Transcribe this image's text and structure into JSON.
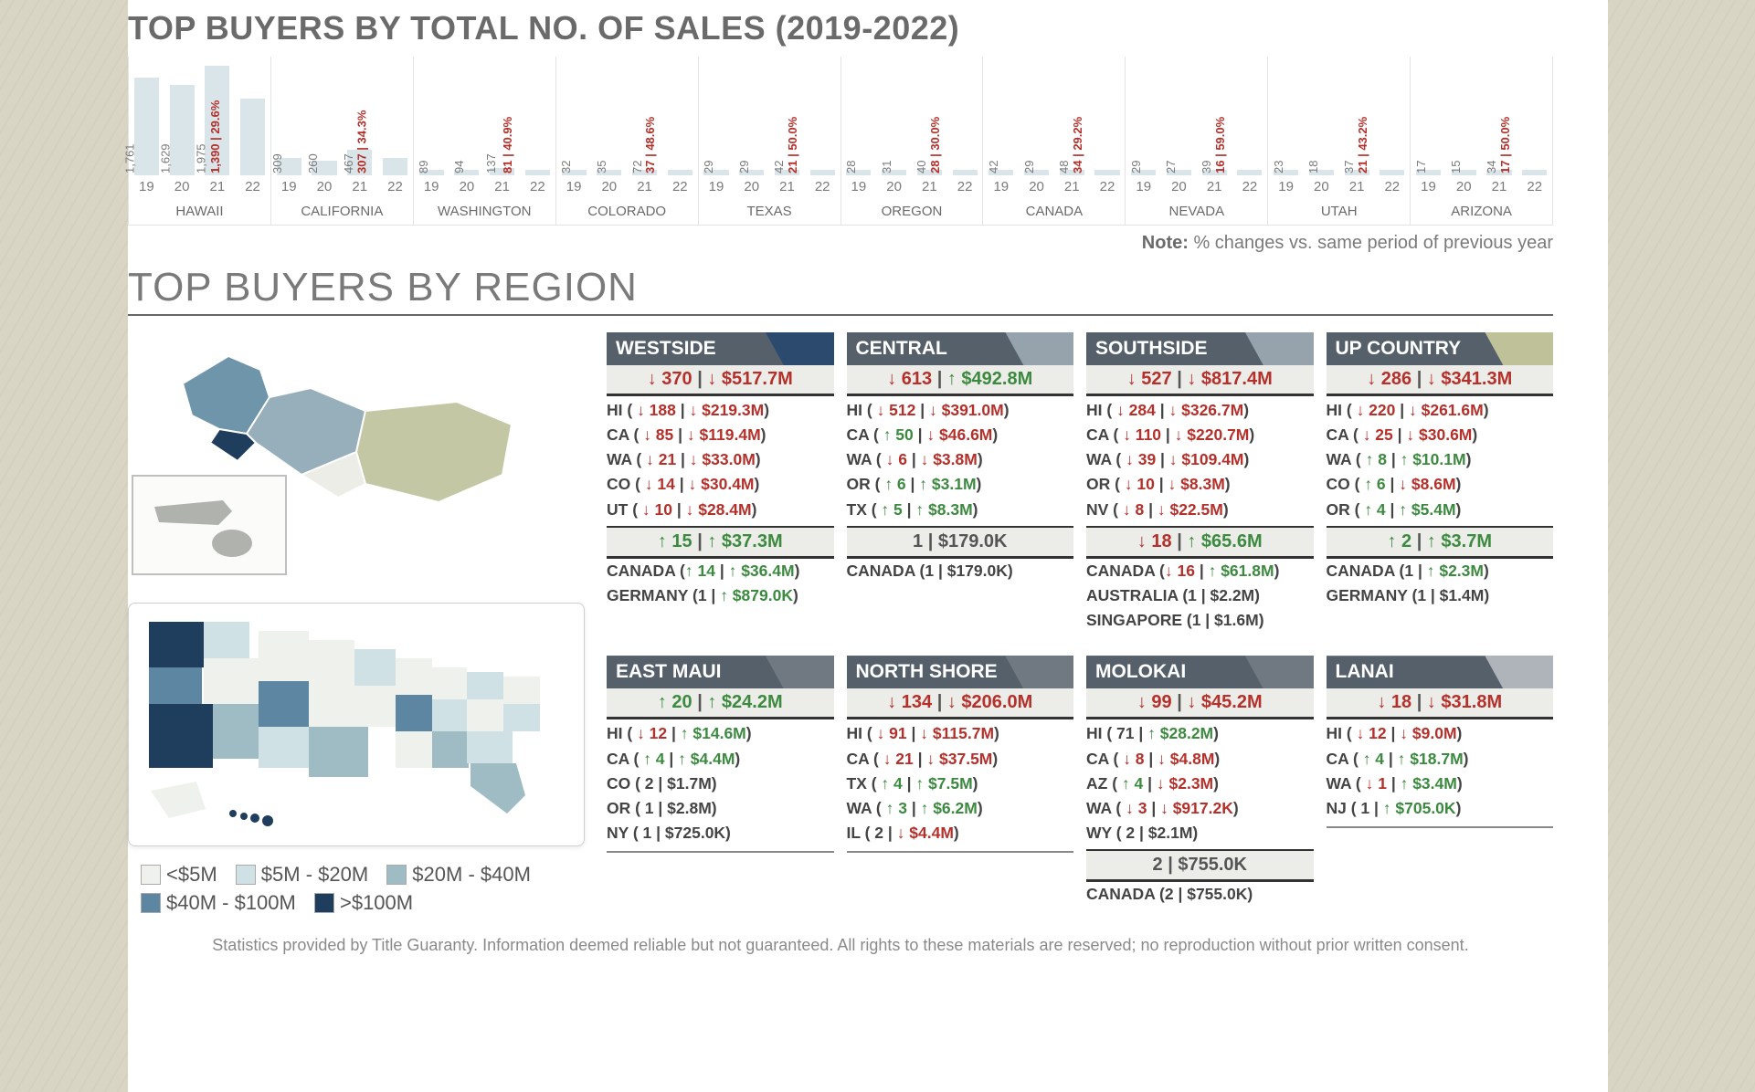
{
  "chartTitle": "TOP BUYERS BY TOTAL NO. OF SALES (2019-2022)",
  "noteLabel": "Note:",
  "noteText": " % changes vs. same period of previous year",
  "regionsTitle": "TOP BUYERS BY REGION",
  "disclaimer": "Statistics provided by Title Guaranty. Information deemed reliable but not guaranteed. All rights to these materials are reserved; no reproduction without prior written consent.",
  "years": [
    "19",
    "20",
    "21",
    "22"
  ],
  "chartMax": 1975,
  "chart": [
    {
      "state": "HAWAII",
      "bars": [
        {
          "v": 1761,
          "label": "1,761"
        },
        {
          "v": 1629,
          "label": "1,629"
        },
        {
          "v": 1975,
          "label": "1,975"
        },
        {
          "v": 1390,
          "label": "1,390 | 29.6%"
        }
      ]
    },
    {
      "state": "CALIFORNIA",
      "bars": [
        {
          "v": 309,
          "label": "309"
        },
        {
          "v": 260,
          "label": "260"
        },
        {
          "v": 467,
          "label": "467"
        },
        {
          "v": 307,
          "label": "307 | 34.3%"
        }
      ]
    },
    {
      "state": "WASHINGTON",
      "bars": [
        {
          "v": 89,
          "label": "89"
        },
        {
          "v": 94,
          "label": "94"
        },
        {
          "v": 137,
          "label": "137"
        },
        {
          "v": 81,
          "label": "81 | 40.9%"
        }
      ]
    },
    {
      "state": "COLORADO",
      "bars": [
        {
          "v": 32,
          "label": "32"
        },
        {
          "v": 35,
          "label": "35"
        },
        {
          "v": 72,
          "label": "72"
        },
        {
          "v": 37,
          "label": "37 | 48.6%"
        }
      ]
    },
    {
      "state": "TEXAS",
      "bars": [
        {
          "v": 29,
          "label": "29"
        },
        {
          "v": 29,
          "label": "29"
        },
        {
          "v": 42,
          "label": "42"
        },
        {
          "v": 21,
          "label": "21 | 50.0%"
        }
      ]
    },
    {
      "state": "OREGON",
      "bars": [
        {
          "v": 28,
          "label": "28"
        },
        {
          "v": 31,
          "label": "31"
        },
        {
          "v": 40,
          "label": "40"
        },
        {
          "v": 28,
          "label": "28 | 30.0%"
        }
      ]
    },
    {
      "state": "CANADA",
      "bars": [
        {
          "v": 42,
          "label": "42"
        },
        {
          "v": 29,
          "label": "29"
        },
        {
          "v": 48,
          "label": "48"
        },
        {
          "v": 34,
          "label": "34 | 29.2%"
        }
      ]
    },
    {
      "state": "NEVADA",
      "bars": [
        {
          "v": 29,
          "label": "29"
        },
        {
          "v": 27,
          "label": "27"
        },
        {
          "v": 39,
          "label": "39"
        },
        {
          "v": 16,
          "label": "16 | 59.0%"
        }
      ]
    },
    {
      "state": "UTAH",
      "bars": [
        {
          "v": 23,
          "label": "23"
        },
        {
          "v": 18,
          "label": "18"
        },
        {
          "v": 37,
          "label": "37"
        },
        {
          "v": 21,
          "label": "21 | 43.2%"
        }
      ]
    },
    {
      "state": "ARIZONA",
      "bars": [
        {
          "v": 17,
          "label": "17"
        },
        {
          "v": 15,
          "label": "15"
        },
        {
          "v": 34,
          "label": "34"
        },
        {
          "v": 17,
          "label": "17 | 50.0%"
        }
      ]
    }
  ],
  "legend": {
    "l1": "<$5M",
    "l2": "$5M - $20M",
    "l3": "$20M - $40M",
    "l4": "$40M - $100M",
    "l5": ">$100M"
  },
  "regions": [
    {
      "name": "WESTSIDE",
      "headClass": "",
      "sum": {
        "c": "↓ 370",
        "m": "↓ $517.7M",
        "cd": "dn",
        "md": "dn"
      },
      "rows": [
        {
          "s": "HI",
          "c": "↓ 188",
          "m": "↓ $219.3M"
        },
        {
          "s": "CA",
          "c": "↓ 85",
          "m": "↓ $119.4M"
        },
        {
          "s": "WA",
          "c": "↓ 21",
          "m": "↓ $33.0M"
        },
        {
          "s": "CO",
          "c": "↓ 14",
          "m": "↓ $30.4M"
        },
        {
          "s": "UT",
          "c": "↓ 10",
          "m": "↓ $28.4M"
        }
      ],
      "intlSum": {
        "c": "↑ 15",
        "m": "↑ $37.3M",
        "cd": "up",
        "md": "up"
      },
      "intl": [
        {
          "s": "CANADA",
          "c": "↑ 14",
          "m": "↑ $36.4M"
        },
        {
          "s": "GERMANY",
          "c": "1",
          "m": "↑ $879.0K"
        }
      ]
    },
    {
      "name": "CENTRAL",
      "headClass": "gray",
      "sum": {
        "c": "↓ 613",
        "m": "↑ $492.8M",
        "cd": "dn",
        "md": "up"
      },
      "rows": [
        {
          "s": "HI",
          "c": "↓ 512",
          "m": "↓ $391.0M"
        },
        {
          "s": "CA",
          "c": "↑ 50",
          "m": "↓ $46.6M"
        },
        {
          "s": "WA",
          "c": "↓ 6",
          "m": "↓ $3.8M"
        },
        {
          "s": "OR",
          "c": "↑ 6",
          "m": "↑ $3.1M"
        },
        {
          "s": "TX",
          "c": "↑ 5",
          "m": "↑ $8.3M"
        }
      ],
      "intlSum": {
        "c": "1",
        "m": "$179.0K",
        "cd": "",
        "md": ""
      },
      "intl": [
        {
          "s": "CANADA",
          "c": "1",
          "m": "$179.0K"
        }
      ]
    },
    {
      "name": "SOUTHSIDE",
      "headClass": "gray",
      "sum": {
        "c": "↓ 527",
        "m": "↓ $817.4M",
        "cd": "dn",
        "md": "dn"
      },
      "rows": [
        {
          "s": "HI",
          "c": "↓ 284",
          "m": "↓ $326.7M"
        },
        {
          "s": "CA",
          "c": "↓ 110",
          "m": "↓ $220.7M"
        },
        {
          "s": "WA",
          "c": "↓ 39",
          "m": "↓ $109.4M"
        },
        {
          "s": "OR",
          "c": "↓ 10",
          "m": "↓ $8.3M"
        },
        {
          "s": "NV",
          "c": "↓ 8",
          "m": "↓ $22.5M"
        }
      ],
      "intlSum": {
        "c": "↓ 18",
        "m": "↑ $65.6M",
        "cd": "dn",
        "md": "up"
      },
      "intl": [
        {
          "s": "CANADA",
          "c": "↓ 16",
          "m": "↑ $61.8M"
        },
        {
          "s": "AUSTRALIA",
          "c": "1",
          "m": "$2.2M"
        },
        {
          "s": "SINGAPORE",
          "c": "1",
          "m": "$1.6M"
        }
      ]
    },
    {
      "name": "UP COUNTRY",
      "headClass": "olive",
      "sum": {
        "c": "↓ 286",
        "m": "↓ $341.3M",
        "cd": "dn",
        "md": "dn"
      },
      "rows": [
        {
          "s": "HI",
          "c": "↓ 220",
          "m": "↓ $261.6M"
        },
        {
          "s": "CA",
          "c": "↓ 25",
          "m": "↓ $30.6M"
        },
        {
          "s": "WA",
          "c": "↑ 8",
          "m": "↑ $10.1M"
        },
        {
          "s": "CO",
          "c": "↑ 6",
          "m": "↓ $8.6M"
        },
        {
          "s": "OR",
          "c": "↑ 4",
          "m": "↑ $5.4M"
        }
      ],
      "intlSum": {
        "c": "↑ 2",
        "m": "↑ $3.7M",
        "cd": "up",
        "md": "up"
      },
      "intl": [
        {
          "s": "CANADA",
          "c": "1",
          "m": "↑ $2.3M"
        },
        {
          "s": "GERMANY",
          "c": "1",
          "m": "$1.4M"
        }
      ]
    },
    {
      "name": "EAST MAUI",
      "headClass": "dark",
      "sum": {
        "c": "↑ 20",
        "m": "↑ $24.2M",
        "cd": "up",
        "md": "up"
      },
      "rows": [
        {
          "s": "HI",
          "c": "↓ 12",
          "m": "↑ $14.6M"
        },
        {
          "s": "CA",
          "c": "↑ 4",
          "m": "↑ $4.4M"
        },
        {
          "s": "CO",
          "c": "2",
          "m": "$1.7M"
        },
        {
          "s": "OR",
          "c": "1",
          "m": "$2.8M"
        },
        {
          "s": "NY",
          "c": "1",
          "m": "$725.0K"
        }
      ],
      "intlSum": null,
      "intl": []
    },
    {
      "name": "NORTH SHORE",
      "headClass": "dark",
      "sum": {
        "c": "↓ 134",
        "m": "↓ $206.0M",
        "cd": "dn",
        "md": "dn"
      },
      "rows": [
        {
          "s": "HI",
          "c": "↓ 91",
          "m": "↓ $115.7M"
        },
        {
          "s": "CA",
          "c": "↓ 21",
          "m": "↓ $37.5M"
        },
        {
          "s": "TX",
          "c": "↑ 4",
          "m": "↑ $7.5M"
        },
        {
          "s": "WA",
          "c": "↑ 3",
          "m": "↑ $6.2M"
        },
        {
          "s": "IL",
          "c": "2",
          "m": "↓ $4.4M"
        }
      ],
      "intlSum": null,
      "intl": []
    },
    {
      "name": "MOLOKAI",
      "headClass": "dark",
      "sum": {
        "c": "↓ 99",
        "m": "↓ $45.2M",
        "cd": "dn",
        "md": "dn"
      },
      "rows": [
        {
          "s": "HI",
          "c": "71",
          "m": "↑ $28.2M"
        },
        {
          "s": "CA",
          "c": "↓ 8",
          "m": "↓ $4.8M"
        },
        {
          "s": "AZ",
          "c": "↑ 4",
          "m": "↓ $2.3M"
        },
        {
          "s": "WA",
          "c": "↓ 3",
          "m": "↓ $917.2K"
        },
        {
          "s": "WY",
          "c": "2",
          "m": "$2.1M"
        }
      ],
      "intlSum": {
        "c": "2",
        "m": "$755.0K",
        "cd": "",
        "md": ""
      },
      "intl": [
        {
          "s": "CANADA",
          "c": "2",
          "m": "$755.0K"
        }
      ]
    },
    {
      "name": "LANAI",
      "headClass": "gray2",
      "sum": {
        "c": "↓ 18",
        "m": "↓ $31.8M",
        "cd": "dn",
        "md": "dn"
      },
      "rows": [
        {
          "s": "HI",
          "c": "↓ 12",
          "m": "↓ $9.0M"
        },
        {
          "s": "CA",
          "c": "↑ 4",
          "m": "↑ $18.7M"
        },
        {
          "s": "WA",
          "c": "↓ 1",
          "m": "↑ $3.4M"
        },
        {
          "s": "NJ",
          "c": "1",
          "m": "↑ $705.0K"
        }
      ],
      "intlSum": null,
      "intl": []
    }
  ]
}
